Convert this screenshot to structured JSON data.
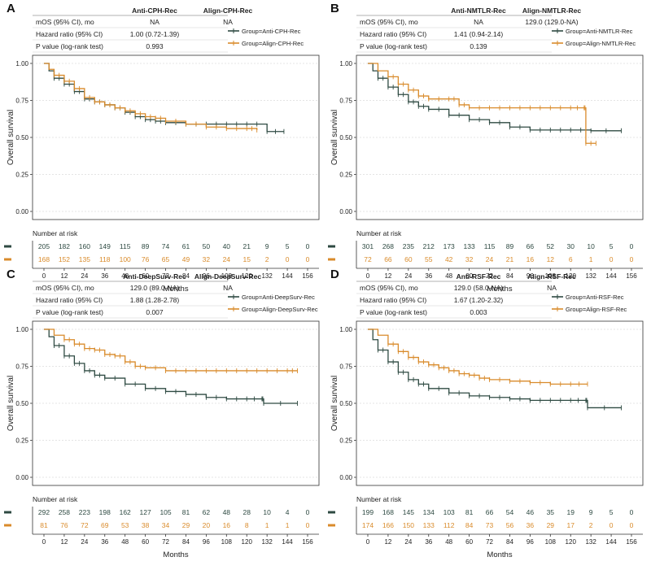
{
  "colors": {
    "anti": "#2e4a42",
    "align": "#d98b2b",
    "grid": "#dcdcdc",
    "axis": "#333333"
  },
  "chart_data": [
    {
      "panel_label": "A",
      "type": "line",
      "title": "",
      "xlabel": "Months",
      "ylabel": "Overall survival",
      "xlim": [
        0,
        156
      ],
      "ylim": [
        0,
        1
      ],
      "xticks": [
        "0",
        "12",
        "24",
        "36",
        "48",
        "60",
        "72",
        "84",
        "96",
        "108",
        "120",
        "132",
        "144",
        "156"
      ],
      "yticks": [
        "0.00",
        "0.25",
        "0.50",
        "0.75",
        "1.00"
      ],
      "stats_table": {
        "headers": [
          "Anti-CPH-Rec",
          "Align-CPH-Rec"
        ],
        "rows": [
          {
            "label": "mOS (95% CI), mo",
            "values": [
              "NA",
              "NA"
            ]
          },
          {
            "label": "Hazard ratio (95% CI)",
            "values": [
              "1.00 (0.72-1.39)",
              ""
            ]
          },
          {
            "label": "P value (log-rank test)",
            "values": [
              "0.993",
              ""
            ]
          }
        ]
      },
      "risk_title": "Number at risk",
      "series": [
        {
          "name": "Group=Anti-CPH-Rec",
          "color_key": "anti",
          "x": [
            0,
            3,
            6,
            12,
            18,
            24,
            30,
            36,
            42,
            48,
            54,
            60,
            66,
            72,
            84,
            96,
            108,
            120,
            132,
            142
          ],
          "y": [
            1.0,
            0.95,
            0.9,
            0.86,
            0.81,
            0.76,
            0.74,
            0.72,
            0.7,
            0.67,
            0.64,
            0.62,
            0.61,
            0.6,
            0.59,
            0.59,
            0.59,
            0.59,
            0.54,
            0.54
          ],
          "at_risk": [
            "205",
            "182",
            "160",
            "149",
            "115",
            "89",
            "74",
            "61",
            "50",
            "40",
            "21",
            "9",
            "5",
            "0"
          ]
        },
        {
          "name": "Group=Align-CPH-Rec",
          "color_key": "align",
          "x": [
            0,
            3,
            6,
            12,
            18,
            24,
            30,
            36,
            42,
            48,
            54,
            60,
            66,
            72,
            84,
            96,
            108,
            120,
            126
          ],
          "y": [
            1.0,
            0.96,
            0.92,
            0.88,
            0.83,
            0.77,
            0.74,
            0.72,
            0.7,
            0.68,
            0.66,
            0.64,
            0.63,
            0.61,
            0.59,
            0.57,
            0.56,
            0.56,
            0.55
          ],
          "at_risk": [
            "168",
            "152",
            "135",
            "118",
            "100",
            "76",
            "65",
            "49",
            "32",
            "24",
            "15",
            "2",
            "0",
            "0"
          ]
        }
      ]
    },
    {
      "panel_label": "B",
      "type": "line",
      "title": "",
      "xlabel": "Months",
      "ylabel": "Overall survival",
      "xlim": [
        0,
        156
      ],
      "ylim": [
        0,
        1
      ],
      "xticks": [
        "0",
        "12",
        "24",
        "36",
        "48",
        "60",
        "72",
        "84",
        "96",
        "108",
        "120",
        "132",
        "144",
        "156"
      ],
      "yticks": [
        "0.00",
        "0.25",
        "0.50",
        "0.75",
        "1.00"
      ],
      "stats_table": {
        "headers": [
          "Anti-NMTLR-Rec",
          "Align-NMTLR-Rec"
        ],
        "rows": [
          {
            "label": "mOS (95% CI), mo",
            "values": [
              "NA",
              "129.0 (129.0-NA)"
            ]
          },
          {
            "label": "Hazard ratio (95% CI)",
            "values": [
              "1.41 (0.94-2.14)",
              ""
            ]
          },
          {
            "label": "P value (log-rank test)",
            "values": [
              "0.139",
              ""
            ]
          }
        ]
      },
      "risk_title": "Number at risk",
      "series": [
        {
          "name": "Group=Anti-NMTLR-Rec",
          "color_key": "anti",
          "x": [
            0,
            3,
            6,
            12,
            18,
            24,
            30,
            36,
            48,
            60,
            72,
            84,
            96,
            108,
            120,
            132,
            150
          ],
          "y": [
            1.0,
            0.95,
            0.9,
            0.84,
            0.79,
            0.74,
            0.71,
            0.69,
            0.65,
            0.62,
            0.6,
            0.57,
            0.55,
            0.55,
            0.55,
            0.545,
            0.545
          ],
          "at_risk": [
            "301",
            "268",
            "235",
            "212",
            "173",
            "133",
            "115",
            "89",
            "66",
            "52",
            "30",
            "10",
            "5",
            "0"
          ]
        },
        {
          "name": "Group=Align-NMTLR-Rec",
          "color_key": "align",
          "x": [
            0,
            6,
            12,
            18,
            24,
            30,
            36,
            48,
            54,
            60,
            72,
            84,
            96,
            108,
            120,
            128,
            129,
            135
          ],
          "y": [
            1.0,
            0.95,
            0.91,
            0.86,
            0.82,
            0.78,
            0.76,
            0.76,
            0.72,
            0.7,
            0.7,
            0.7,
            0.7,
            0.7,
            0.7,
            0.7,
            0.46,
            0.46
          ],
          "at_risk": [
            "72",
            "66",
            "60",
            "55",
            "42",
            "32",
            "24",
            "21",
            "16",
            "12",
            "6",
            "1",
            "0",
            "0"
          ]
        }
      ]
    },
    {
      "panel_label": "C",
      "type": "line",
      "title": "",
      "xlabel": "Months",
      "ylabel": "Overall survival",
      "xlim": [
        0,
        156
      ],
      "ylim": [
        0,
        1
      ],
      "xticks": [
        "0",
        "12",
        "24",
        "36",
        "48",
        "60",
        "72",
        "84",
        "96",
        "108",
        "120",
        "132",
        "144",
        "156"
      ],
      "yticks": [
        "0.00",
        "0.25",
        "0.50",
        "0.75",
        "1.00"
      ],
      "stats_table": {
        "headers": [
          "Anti-DeepSurv-Rec",
          "Align-DeepSurv-Rec"
        ],
        "rows": [
          {
            "label": "mOS (95% CI), mo",
            "values": [
              "129.0 (89.0-NA)",
              "NA"
            ]
          },
          {
            "label": "Hazard ratio (95% CI)",
            "values": [
              "1.88 (1.28-2.78)",
              ""
            ]
          },
          {
            "label": "P value (log-rank test)",
            "values": [
              "0.007",
              ""
            ]
          }
        ]
      },
      "risk_title": "Number at risk",
      "series": [
        {
          "name": "Group=Anti-DeepSurv-Rec",
          "color_key": "anti",
          "x": [
            0,
            3,
            6,
            12,
            18,
            24,
            30,
            36,
            48,
            60,
            72,
            84,
            96,
            108,
            120,
            129,
            130,
            150
          ],
          "y": [
            1.0,
            0.95,
            0.89,
            0.82,
            0.77,
            0.72,
            0.69,
            0.67,
            0.63,
            0.6,
            0.58,
            0.56,
            0.54,
            0.53,
            0.53,
            0.53,
            0.5,
            0.5
          ],
          "at_risk": [
            "292",
            "258",
            "223",
            "198",
            "162",
            "127",
            "105",
            "81",
            "62",
            "48",
            "28",
            "10",
            "4",
            "0"
          ]
        },
        {
          "name": "Group=Align-DeepSurv-Rec",
          "color_key": "align",
          "x": [
            0,
            6,
            12,
            18,
            24,
            30,
            36,
            42,
            48,
            54,
            60,
            72,
            84,
            96,
            108,
            120,
            132,
            144,
            150
          ],
          "y": [
            1.0,
            0.96,
            0.93,
            0.9,
            0.87,
            0.86,
            0.83,
            0.82,
            0.78,
            0.75,
            0.74,
            0.72,
            0.72,
            0.72,
            0.72,
            0.72,
            0.72,
            0.72,
            0.72
          ],
          "at_risk": [
            "81",
            "76",
            "72",
            "69",
            "53",
            "38",
            "34",
            "29",
            "20",
            "16",
            "8",
            "1",
            "1",
            "0"
          ]
        }
      ]
    },
    {
      "panel_label": "D",
      "type": "line",
      "title": "",
      "xlabel": "Months",
      "ylabel": "Overall survival",
      "xlim": [
        0,
        156
      ],
      "ylim": [
        0,
        1
      ],
      "xticks": [
        "0",
        "12",
        "24",
        "36",
        "48",
        "60",
        "72",
        "84",
        "96",
        "108",
        "120",
        "132",
        "144",
        "156"
      ],
      "yticks": [
        "0.00",
        "0.25",
        "0.50",
        "0.75",
        "1.00"
      ],
      "stats_table": {
        "headers": [
          "Anti-RSF-Rec",
          "Align-RSF-Rec"
        ],
        "rows": [
          {
            "label": "mOS (95% CI), mo",
            "values": [
              "129.0 (58.0-NA)",
              "NA"
            ]
          },
          {
            "label": "Hazard ratio (95% CI)",
            "values": [
              "1.67 (1.20-2.32)",
              ""
            ]
          },
          {
            "label": "P value (log-rank test)",
            "values": [
              "0.003",
              ""
            ]
          }
        ]
      },
      "risk_title": "Number at risk",
      "series": [
        {
          "name": "Group=Anti-RSF-Rec",
          "color_key": "anti",
          "x": [
            0,
            3,
            6,
            12,
            18,
            24,
            30,
            36,
            48,
            60,
            72,
            84,
            96,
            108,
            120,
            129,
            130,
            150
          ],
          "y": [
            1.0,
            0.93,
            0.86,
            0.78,
            0.71,
            0.66,
            0.63,
            0.6,
            0.57,
            0.55,
            0.54,
            0.53,
            0.52,
            0.52,
            0.52,
            0.52,
            0.47,
            0.47
          ],
          "at_risk": [
            "199",
            "168",
            "145",
            "134",
            "103",
            "81",
            "66",
            "54",
            "46",
            "35",
            "19",
            "9",
            "5",
            "0"
          ]
        },
        {
          "name": "Group=Align-RSF-Rec",
          "color_key": "align",
          "x": [
            0,
            6,
            12,
            18,
            24,
            30,
            36,
            42,
            48,
            54,
            60,
            66,
            72,
            84,
            96,
            108,
            120,
            130
          ],
          "y": [
            1.0,
            0.96,
            0.9,
            0.85,
            0.81,
            0.78,
            0.76,
            0.74,
            0.72,
            0.7,
            0.69,
            0.67,
            0.66,
            0.65,
            0.64,
            0.63,
            0.63,
            0.63
          ],
          "at_risk": [
            "174",
            "166",
            "150",
            "133",
            "112",
            "84",
            "73",
            "56",
            "36",
            "29",
            "17",
            "2",
            "0",
            "0"
          ]
        }
      ]
    }
  ]
}
